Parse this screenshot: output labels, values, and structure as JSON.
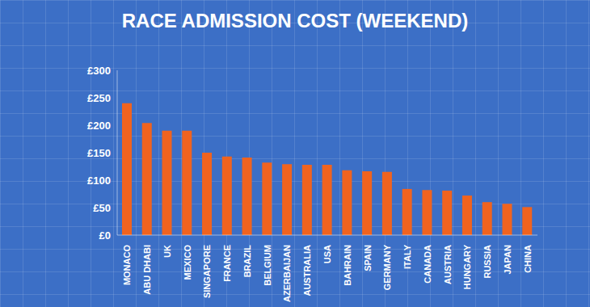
{
  "chart_data": {
    "type": "bar",
    "title": "RACE ADMISSION COST (WEEKEND)",
    "categories": [
      "MONACO",
      "ABU DHABI",
      "UK",
      "MEXICO",
      "SINGAPORE",
      "FRANCE",
      "BRAZIL",
      "BELGIUM",
      "AZERBAIJAN",
      "AUSTRALIA",
      "USA",
      "BAHRAIN",
      "SPAIN",
      "GERMANY",
      "ITALY",
      "CANADA",
      "AUSTRIA",
      "HUNGARY",
      "RUSSIA",
      "JAPAN",
      "CHINA"
    ],
    "values": [
      240,
      204,
      190,
      190,
      150,
      143,
      141,
      132,
      129,
      128,
      128,
      118,
      116,
      115,
      84,
      82,
      81,
      72,
      60,
      57,
      51
    ],
    "color": "#f0631f",
    "ylim": [
      0,
      300
    ],
    "yticks": [
      {
        "value": 0,
        "label": "£0"
      },
      {
        "value": 50,
        "label": "£50"
      },
      {
        "value": 100,
        "label": "£100"
      },
      {
        "value": 150,
        "label": "£150"
      },
      {
        "value": 200,
        "label": "£200"
      },
      {
        "value": 250,
        "label": "£250"
      },
      {
        "value": 300,
        "label": "£300"
      }
    ],
    "grid": false
  }
}
